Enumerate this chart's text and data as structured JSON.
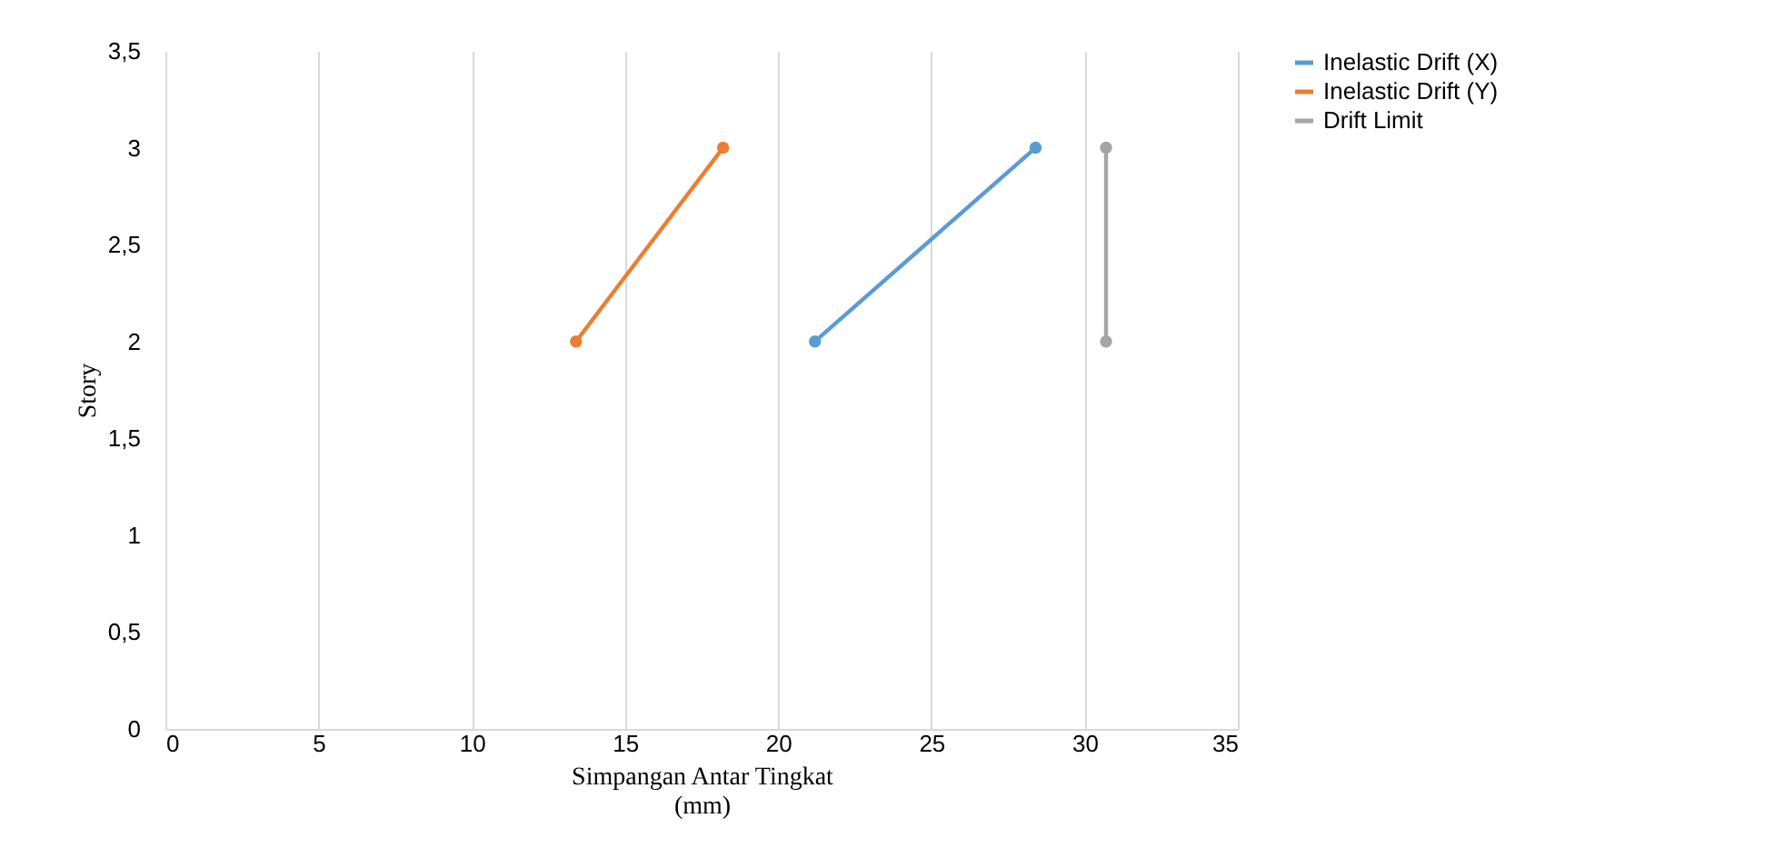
{
  "chart_data": {
    "type": "line",
    "xlabel": "Simpangan Antar Tingkat\n(mm)",
    "ylabel": "Story",
    "xlim": [
      0,
      35
    ],
    "xticks": [
      0,
      5,
      10,
      15,
      20,
      25,
      30,
      35
    ],
    "ylim": [
      0,
      3.5
    ],
    "yticks": [
      0,
      {
        "value": 0.5,
        "label": "0,5"
      },
      1,
      {
        "value": 1.5,
        "label": "1,5"
      },
      2,
      {
        "value": 2.5,
        "label": "2,5"
      },
      3,
      {
        "value": 3.5,
        "label": "3,5"
      }
    ],
    "grid": "x",
    "legend": "right",
    "marker": "circle",
    "line_style": "solid",
    "series": [
      {
        "name": "Inelastic Drift (X)",
        "color": "#5b9bd5",
        "x": [
          21.2,
          28.4
        ],
        "values": [
          2,
          3
        ]
      },
      {
        "name": "Inelastic Drift (Y)",
        "color": "#ed7d31",
        "x": [
          13.4,
          18.2
        ],
        "values": [
          2,
          3
        ]
      },
      {
        "name": "Drift Limit",
        "color": "#a5a5a5",
        "x": [
          30.7,
          30.7
        ],
        "values": [
          2,
          3
        ]
      }
    ]
  }
}
